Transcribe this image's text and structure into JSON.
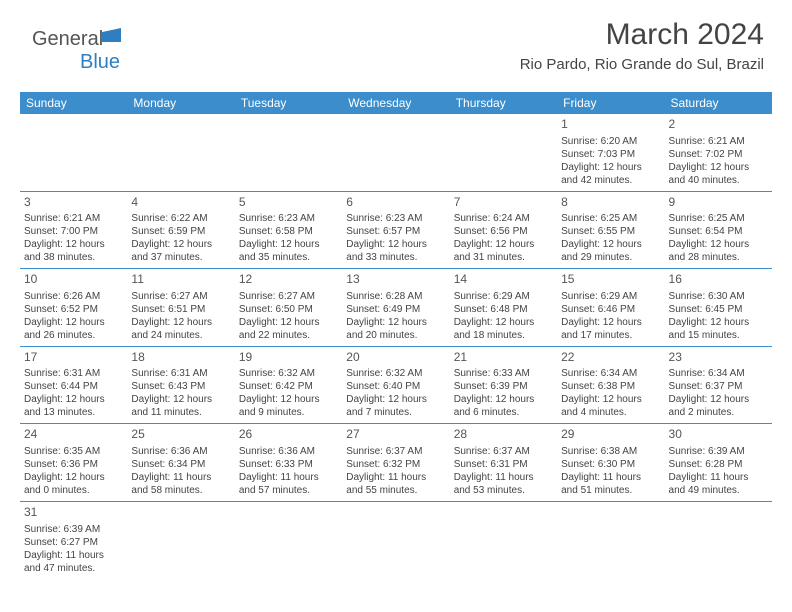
{
  "logo": {
    "text1": "General",
    "text2": "Blue"
  },
  "title": "March 2024",
  "subtitle": "Rio Pardo, Rio Grande do Sul, Brazil",
  "weekdays": [
    "Sunday",
    "Monday",
    "Tuesday",
    "Wednesday",
    "Thursday",
    "Friday",
    "Saturday"
  ],
  "colors": {
    "header_bg": "#3c8dcc",
    "header_text": "#ffffff",
    "text": "#444444",
    "logo_gray": "#555555",
    "logo_blue": "#2f7fc0",
    "border": "#3c8dcc"
  },
  "label_sunrise": "Sunrise:",
  "label_sunset": "Sunset:",
  "label_daylight": "Daylight:",
  "weeks": [
    [
      null,
      null,
      null,
      null,
      null,
      {
        "n": "1",
        "sr": "6:20 AM",
        "ss": "7:03 PM",
        "d1": "12 hours",
        "d2": "and 42 minutes."
      },
      {
        "n": "2",
        "sr": "6:21 AM",
        "ss": "7:02 PM",
        "d1": "12 hours",
        "d2": "and 40 minutes."
      }
    ],
    [
      {
        "n": "3",
        "sr": "6:21 AM",
        "ss": "7:00 PM",
        "d1": "12 hours",
        "d2": "and 38 minutes."
      },
      {
        "n": "4",
        "sr": "6:22 AM",
        "ss": "6:59 PM",
        "d1": "12 hours",
        "d2": "and 37 minutes."
      },
      {
        "n": "5",
        "sr": "6:23 AM",
        "ss": "6:58 PM",
        "d1": "12 hours",
        "d2": "and 35 minutes."
      },
      {
        "n": "6",
        "sr": "6:23 AM",
        "ss": "6:57 PM",
        "d1": "12 hours",
        "d2": "and 33 minutes."
      },
      {
        "n": "7",
        "sr": "6:24 AM",
        "ss": "6:56 PM",
        "d1": "12 hours",
        "d2": "and 31 minutes."
      },
      {
        "n": "8",
        "sr": "6:25 AM",
        "ss": "6:55 PM",
        "d1": "12 hours",
        "d2": "and 29 minutes."
      },
      {
        "n": "9",
        "sr": "6:25 AM",
        "ss": "6:54 PM",
        "d1": "12 hours",
        "d2": "and 28 minutes."
      }
    ],
    [
      {
        "n": "10",
        "sr": "6:26 AM",
        "ss": "6:52 PM",
        "d1": "12 hours",
        "d2": "and 26 minutes."
      },
      {
        "n": "11",
        "sr": "6:27 AM",
        "ss": "6:51 PM",
        "d1": "12 hours",
        "d2": "and 24 minutes."
      },
      {
        "n": "12",
        "sr": "6:27 AM",
        "ss": "6:50 PM",
        "d1": "12 hours",
        "d2": "and 22 minutes."
      },
      {
        "n": "13",
        "sr": "6:28 AM",
        "ss": "6:49 PM",
        "d1": "12 hours",
        "d2": "and 20 minutes."
      },
      {
        "n": "14",
        "sr": "6:29 AM",
        "ss": "6:48 PM",
        "d1": "12 hours",
        "d2": "and 18 minutes."
      },
      {
        "n": "15",
        "sr": "6:29 AM",
        "ss": "6:46 PM",
        "d1": "12 hours",
        "d2": "and 17 minutes."
      },
      {
        "n": "16",
        "sr": "6:30 AM",
        "ss": "6:45 PM",
        "d1": "12 hours",
        "d2": "and 15 minutes."
      }
    ],
    [
      {
        "n": "17",
        "sr": "6:31 AM",
        "ss": "6:44 PM",
        "d1": "12 hours",
        "d2": "and 13 minutes."
      },
      {
        "n": "18",
        "sr": "6:31 AM",
        "ss": "6:43 PM",
        "d1": "12 hours",
        "d2": "and 11 minutes."
      },
      {
        "n": "19",
        "sr": "6:32 AM",
        "ss": "6:42 PM",
        "d1": "12 hours",
        "d2": "and 9 minutes."
      },
      {
        "n": "20",
        "sr": "6:32 AM",
        "ss": "6:40 PM",
        "d1": "12 hours",
        "d2": "and 7 minutes."
      },
      {
        "n": "21",
        "sr": "6:33 AM",
        "ss": "6:39 PM",
        "d1": "12 hours",
        "d2": "and 6 minutes."
      },
      {
        "n": "22",
        "sr": "6:34 AM",
        "ss": "6:38 PM",
        "d1": "12 hours",
        "d2": "and 4 minutes."
      },
      {
        "n": "23",
        "sr": "6:34 AM",
        "ss": "6:37 PM",
        "d1": "12 hours",
        "d2": "and 2 minutes."
      }
    ],
    [
      {
        "n": "24",
        "sr": "6:35 AM",
        "ss": "6:36 PM",
        "d1": "12 hours",
        "d2": "and 0 minutes."
      },
      {
        "n": "25",
        "sr": "6:36 AM",
        "ss": "6:34 PM",
        "d1": "11 hours",
        "d2": "and 58 minutes."
      },
      {
        "n": "26",
        "sr": "6:36 AM",
        "ss": "6:33 PM",
        "d1": "11 hours",
        "d2": "and 57 minutes."
      },
      {
        "n": "27",
        "sr": "6:37 AM",
        "ss": "6:32 PM",
        "d1": "11 hours",
        "d2": "and 55 minutes."
      },
      {
        "n": "28",
        "sr": "6:37 AM",
        "ss": "6:31 PM",
        "d1": "11 hours",
        "d2": "and 53 minutes."
      },
      {
        "n": "29",
        "sr": "6:38 AM",
        "ss": "6:30 PM",
        "d1": "11 hours",
        "d2": "and 51 minutes."
      },
      {
        "n": "30",
        "sr": "6:39 AM",
        "ss": "6:28 PM",
        "d1": "11 hours",
        "d2": "and 49 minutes."
      }
    ],
    [
      {
        "n": "31",
        "sr": "6:39 AM",
        "ss": "6:27 PM",
        "d1": "11 hours",
        "d2": "and 47 minutes."
      },
      null,
      null,
      null,
      null,
      null,
      null
    ]
  ]
}
